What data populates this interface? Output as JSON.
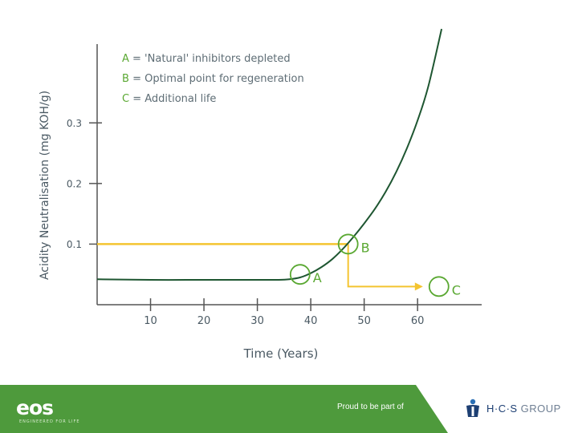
{
  "chart_data": {
    "type": "line",
    "xlabel": "Time (Years)",
    "ylabel": "Acidity Neutralisation (mg KOH/g)",
    "xlim": [
      0,
      72
    ],
    "ylim": [
      0,
      0.43
    ],
    "x_ticks": [
      10,
      20,
      30,
      40,
      50,
      60
    ],
    "x_tick_labels": [
      "10",
      "20",
      "30",
      "40",
      "50",
      "60"
    ],
    "y_ticks": [
      0.1,
      0.2,
      0.3
    ],
    "y_tick_labels": [
      "0.1",
      "0.2",
      "0.3"
    ],
    "grid": false,
    "series": [
      {
        "color": "#1e5631",
        "x": [
          0,
          10,
          20,
          30,
          34,
          36,
          38,
          40,
          42,
          44,
          46,
          48,
          50,
          52,
          54,
          56,
          58,
          60,
          62,
          64.5
        ],
        "y": [
          0.042,
          0.041,
          0.041,
          0.041,
          0.041,
          0.042,
          0.045,
          0.052,
          0.062,
          0.075,
          0.092,
          0.112,
          0.134,
          0.158,
          0.186,
          0.219,
          0.258,
          0.304,
          0.36,
          0.455
        ]
      }
    ],
    "guides": {
      "color": "#f4c430",
      "horizontal_y": 0.1,
      "drop_x": 47,
      "arrow_to_x": 61,
      "arrow_y": 0.03
    },
    "annotations": [
      {
        "letter": "A",
        "x": 38,
        "y": 0.05
      },
      {
        "letter": "B",
        "x": 47,
        "y": 0.1
      },
      {
        "letter": "C",
        "x": 64,
        "y": 0.03
      }
    ],
    "legend": {
      "placement": "top-left",
      "letter_color": "#5aa832",
      "text_color": "#5e6d75",
      "items": [
        {
          "letter": "A",
          "text": "= 'Natural' inhibitors depleted"
        },
        {
          "letter": "B",
          "text": "= Optimal point for regeneration"
        },
        {
          "letter": "C",
          "text": "= Additional life"
        }
      ]
    }
  },
  "colors": {
    "footer_green": "#4e9a3c",
    "axis": "#555555",
    "label_text": "#4a5963"
  },
  "footer": {
    "eos_logo": "eos",
    "eos_tagline": "ENGINEERED FOR LIFE",
    "tagline": "Proud to be part of",
    "hcs_logo": "H·C·S",
    "hcs_group": "GROUP",
    "hcs_icon": "hcs-figure-icon"
  }
}
